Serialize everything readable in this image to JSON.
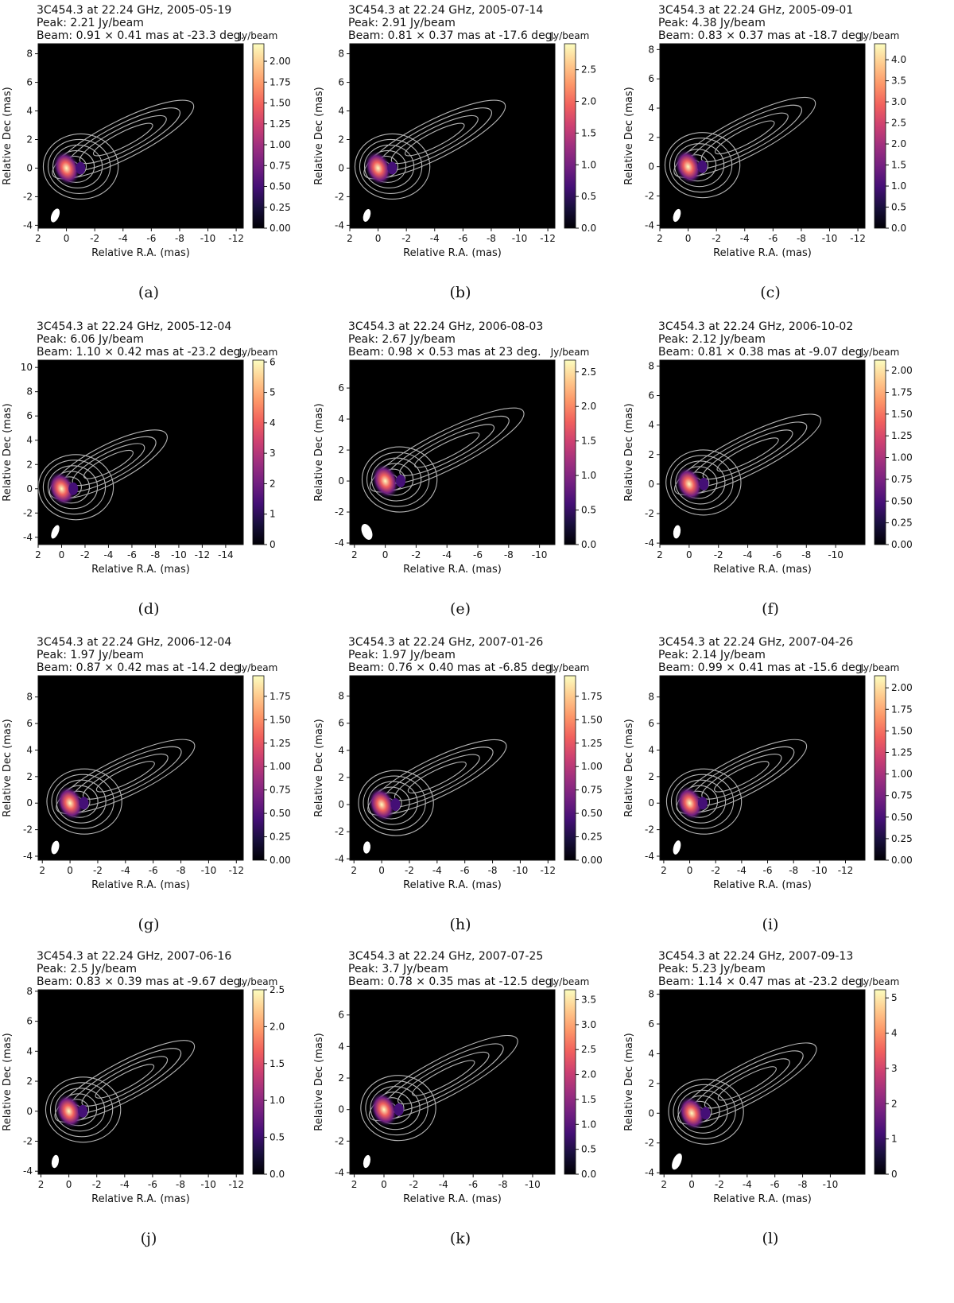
{
  "figure": {
    "units_label": "Jy/beam",
    "xlabel": "Relative R.A. (mas)",
    "ylabel": "Relative Dec (mas)",
    "colormap": [
      "#000004",
      "#180f3d",
      "#440f76",
      "#721f81",
      "#9e2f7f",
      "#cd4071",
      "#f1605d",
      "#fd9668",
      "#feca8d",
      "#fcfdbf"
    ],
    "contour_color": "#b4b4b4",
    "background_color": "#000000"
  },
  "chart_data": [
    {
      "type": "heatmap",
      "panel_label": "(a)",
      "title_lines": [
        "3C454.3 at 22.24 GHz, 2005-05-19",
        "Peak: 2.21 Jy/beam",
        "Beam: 0.91 × 0.41 mas at -23.3 deg."
      ],
      "xlim": [
        2,
        -12.5
      ],
      "ylim": [
        -4.2,
        8.7
      ],
      "xticks": [
        2,
        0,
        -2,
        -4,
        -6,
        -8,
        -10,
        -12
      ],
      "yticks": [
        -4,
        -2,
        0,
        2,
        4,
        6,
        8
      ],
      "cbar_max": 2.21,
      "cbar_ticks": [
        "0.00",
        "0.25",
        "0.50",
        "0.75",
        "1.00",
        "1.25",
        "1.50",
        "1.75",
        "2.00"
      ],
      "cbar_values": [
        0,
        0.25,
        0.5,
        0.75,
        1,
        1.25,
        1.5,
        1.75,
        2
      ],
      "beam": {
        "major_mas": 0.91,
        "minor_mas": 0.41,
        "pa_deg": -23.3
      }
    },
    {
      "type": "heatmap",
      "panel_label": "(b)",
      "title_lines": [
        "3C454.3 at 22.24 GHz, 2005-07-14",
        "Peak: 2.91 Jy/beam",
        "Beam: 0.81 × 0.37 mas at -17.6 deg."
      ],
      "xlim": [
        2,
        -12.5
      ],
      "ylim": [
        -4.2,
        8.7
      ],
      "xticks": [
        2,
        0,
        -2,
        -4,
        -6,
        -8,
        -10,
        -12
      ],
      "yticks": [
        -4,
        -2,
        0,
        2,
        4,
        6,
        8
      ],
      "cbar_max": 2.91,
      "cbar_ticks": [
        "0.0",
        "0.5",
        "1.0",
        "1.5",
        "2.0",
        "2.5"
      ],
      "cbar_values": [
        0,
        0.5,
        1,
        1.5,
        2,
        2.5
      ],
      "beam": {
        "major_mas": 0.81,
        "minor_mas": 0.37,
        "pa_deg": -17.6
      }
    },
    {
      "type": "heatmap",
      "panel_label": "(c)",
      "title_lines": [
        "3C454.3 at 22.24 GHz, 2005-09-01",
        "Peak: 4.38 Jy/beam",
        "Beam: 0.83 × 0.37 mas at -18.7 deg."
      ],
      "xlim": [
        2,
        -12.5
      ],
      "ylim": [
        -4.2,
        8.4
      ],
      "xticks": [
        2,
        0,
        -2,
        -4,
        -6,
        -8,
        -10,
        -12
      ],
      "yticks": [
        -4,
        -2,
        0,
        2,
        4,
        6,
        8
      ],
      "cbar_max": 4.38,
      "cbar_ticks": [
        "0.0",
        "0.5",
        "1.0",
        "1.5",
        "2.0",
        "2.5",
        "3.0",
        "3.5",
        "4.0"
      ],
      "cbar_values": [
        0,
        0.5,
        1,
        1.5,
        2,
        2.5,
        3,
        3.5,
        4
      ],
      "beam": {
        "major_mas": 0.83,
        "minor_mas": 0.37,
        "pa_deg": -18.7
      }
    },
    {
      "type": "heatmap",
      "panel_label": "(d)",
      "title_lines": [
        "3C454.3 at 22.24 GHz, 2005-12-04",
        "Peak: 6.06 Jy/beam",
        "Beam: 1.10 × 0.42 mas at -23.2 deg."
      ],
      "xlim": [
        2,
        -15.5
      ],
      "ylim": [
        -4.6,
        10.6
      ],
      "xticks": [
        2,
        0,
        -2,
        -4,
        -6,
        -8,
        -10,
        -12,
        -14
      ],
      "yticks": [
        -4,
        -2,
        0,
        2,
        4,
        6,
        8,
        10
      ],
      "cbar_max": 6.06,
      "cbar_ticks": [
        "0",
        "1",
        "2",
        "3",
        "4",
        "5",
        "6"
      ],
      "cbar_values": [
        0,
        1,
        2,
        3,
        4,
        5,
        6
      ],
      "beam": {
        "major_mas": 1.1,
        "minor_mas": 0.42,
        "pa_deg": -23.2
      }
    },
    {
      "type": "heatmap",
      "panel_label": "(e)",
      "title_lines": [
        "3C454.3 at 22.24 GHz, 2006-08-03",
        "Peak: 2.67 Jy/beam",
        "Beam: 0.98 × 0.53 mas at 23 deg."
      ],
      "xlim": [
        2.3,
        -11
      ],
      "ylim": [
        -4.1,
        7.8
      ],
      "xticks": [
        2,
        0,
        -2,
        -4,
        -6,
        -8,
        -10
      ],
      "yticks": [
        -4,
        -2,
        0,
        2,
        4,
        6
      ],
      "cbar_max": 2.67,
      "cbar_ticks": [
        "0.0",
        "0.5",
        "1.0",
        "1.5",
        "2.0",
        "2.5"
      ],
      "cbar_values": [
        0,
        0.5,
        1,
        1.5,
        2,
        2.5
      ],
      "beam": {
        "major_mas": 0.98,
        "minor_mas": 0.53,
        "pa_deg": 23
      }
    },
    {
      "type": "heatmap",
      "panel_label": "(f)",
      "title_lines": [
        "3C454.3 at 22.24 GHz, 2006-10-02",
        "Peak: 2.12 Jy/beam",
        "Beam: 0.81 × 0.38 mas at -9.07 deg."
      ],
      "xlim": [
        2,
        -12
      ],
      "ylim": [
        -4.1,
        8.4
      ],
      "xticks": [
        2,
        0,
        -2,
        -4,
        -6,
        -8,
        -10
      ],
      "yticks": [
        -4,
        -2,
        0,
        2,
        4,
        6,
        8
      ],
      "cbar_max": 2.12,
      "cbar_ticks": [
        "0.00",
        "0.25",
        "0.50",
        "0.75",
        "1.00",
        "1.25",
        "1.50",
        "1.75",
        "2.00"
      ],
      "cbar_values": [
        0,
        0.25,
        0.5,
        0.75,
        1,
        1.25,
        1.5,
        1.75,
        2
      ],
      "beam": {
        "major_mas": 0.81,
        "minor_mas": 0.38,
        "pa_deg": -9.07
      }
    },
    {
      "type": "heatmap",
      "panel_label": "(g)",
      "title_lines": [
        "3C454.3 at 22.24 GHz, 2006-12-04",
        "Peak: 1.97 Jy/beam",
        "Beam: 0.87 × 0.42 mas at -14.2 deg."
      ],
      "xlim": [
        2.3,
        -12.5
      ],
      "ylim": [
        -4.3,
        9.6
      ],
      "xticks": [
        2,
        0,
        -2,
        -4,
        -6,
        -8,
        -10,
        -12
      ],
      "yticks": [
        -4,
        -2,
        0,
        2,
        4,
        6,
        8
      ],
      "cbar_max": 1.97,
      "cbar_ticks": [
        "0.00",
        "0.25",
        "0.50",
        "0.75",
        "1.00",
        "1.25",
        "1.50",
        "1.75"
      ],
      "cbar_values": [
        0,
        0.25,
        0.5,
        0.75,
        1,
        1.25,
        1.5,
        1.75
      ],
      "beam": {
        "major_mas": 0.87,
        "minor_mas": 0.42,
        "pa_deg": -14.2
      }
    },
    {
      "type": "heatmap",
      "panel_label": "(h)",
      "title_lines": [
        "3C454.3 at 22.24 GHz, 2007-01-26",
        "Peak: 1.97 Jy/beam",
        "Beam: 0.76 × 0.40 mas at -6.85 deg."
      ],
      "xlim": [
        2.3,
        -12.5
      ],
      "ylim": [
        -4.1,
        9.5
      ],
      "xticks": [
        2,
        0,
        -2,
        -4,
        -6,
        -8,
        -10,
        -12
      ],
      "yticks": [
        -4,
        -2,
        0,
        2,
        4,
        6,
        8
      ],
      "cbar_max": 1.97,
      "cbar_ticks": [
        "0.00",
        "0.25",
        "0.50",
        "0.75",
        "1.00",
        "1.25",
        "1.50",
        "1.75"
      ],
      "cbar_values": [
        0,
        0.25,
        0.5,
        0.75,
        1,
        1.25,
        1.5,
        1.75
      ],
      "beam": {
        "major_mas": 0.76,
        "minor_mas": 0.4,
        "pa_deg": -6.85
      }
    },
    {
      "type": "heatmap",
      "panel_label": "(i)",
      "title_lines": [
        "3C454.3 at 22.24 GHz, 2007-04-26",
        "Peak: 2.14 Jy/beam",
        "Beam: 0.99 × 0.41 mas at -15.6 deg."
      ],
      "xlim": [
        2.3,
        -13.5
      ],
      "ylim": [
        -4.3,
        9.6
      ],
      "xticks": [
        2,
        0,
        -2,
        -4,
        -6,
        -8,
        -10,
        -12
      ],
      "yticks": [
        -4,
        -2,
        0,
        2,
        4,
        6,
        8
      ],
      "cbar_max": 2.14,
      "cbar_ticks": [
        "0.00",
        "0.25",
        "0.50",
        "0.75",
        "1.00",
        "1.25",
        "1.50",
        "1.75",
        "2.00"
      ],
      "cbar_values": [
        0,
        0.25,
        0.5,
        0.75,
        1,
        1.25,
        1.5,
        1.75,
        2
      ],
      "beam": {
        "major_mas": 0.99,
        "minor_mas": 0.41,
        "pa_deg": -15.6
      }
    },
    {
      "type": "heatmap",
      "panel_label": "(j)",
      "title_lines": [
        "3C454.3 at 22.24 GHz, 2007-06-16",
        "Peak: 2.5 Jy/beam",
        "Beam: 0.83 × 0.39 mas at -9.67 deg."
      ],
      "xlim": [
        2.2,
        -12.5
      ],
      "ylim": [
        -4.2,
        8.1
      ],
      "xticks": [
        2,
        0,
        -2,
        -4,
        -6,
        -8,
        -10,
        -12
      ],
      "yticks": [
        -4,
        -2,
        0,
        2,
        4,
        6,
        8
      ],
      "cbar_max": 2.5,
      "cbar_ticks": [
        "0.0",
        "0.5",
        "1.0",
        "1.5",
        "2.0",
        "2.5"
      ],
      "cbar_values": [
        0,
        0.5,
        1,
        1.5,
        2,
        2.5
      ],
      "beam": {
        "major_mas": 0.83,
        "minor_mas": 0.39,
        "pa_deg": -9.67
      }
    },
    {
      "type": "heatmap",
      "panel_label": "(k)",
      "title_lines": [
        "3C454.3 at 22.24 GHz, 2007-07-25",
        "Peak: 3.7 Jy/beam",
        "Beam: 0.78 × 0.35 mas at -12.5 deg."
      ],
      "xlim": [
        2.3,
        -11.5
      ],
      "ylim": [
        -4.1,
        7.6
      ],
      "xticks": [
        2,
        0,
        -2,
        -4,
        -6,
        -8,
        -10
      ],
      "yticks": [
        -4,
        -2,
        0,
        2,
        4,
        6
      ],
      "cbar_max": 3.7,
      "cbar_ticks": [
        "0.0",
        "0.5",
        "1.0",
        "1.5",
        "2.0",
        "2.5",
        "3.0",
        "3.5"
      ],
      "cbar_values": [
        0,
        0.5,
        1,
        1.5,
        2,
        2.5,
        3,
        3.5
      ],
      "beam": {
        "major_mas": 0.78,
        "minor_mas": 0.35,
        "pa_deg": -12.5
      }
    },
    {
      "type": "heatmap",
      "panel_label": "(l)",
      "title_lines": [
        "3C454.3 at 22.24 GHz, 2007-09-13",
        "Peak: 5.23 Jy/beam",
        "Beam: 1.14 × 0.47 mas at -23.2 deg."
      ],
      "xlim": [
        2.3,
        -12.5
      ],
      "ylim": [
        -4.1,
        8.3
      ],
      "xticks": [
        2,
        0,
        -2,
        -4,
        -6,
        -8,
        -10
      ],
      "yticks": [
        -4,
        -2,
        0,
        2,
        4,
        6,
        8
      ],
      "cbar_max": 5.23,
      "cbar_ticks": [
        "0",
        "1",
        "2",
        "3",
        "4",
        "5"
      ],
      "cbar_values": [
        0,
        1,
        2,
        3,
        4,
        5
      ],
      "beam": {
        "major_mas": 1.14,
        "minor_mas": 0.47,
        "pa_deg": -23.2
      }
    }
  ]
}
